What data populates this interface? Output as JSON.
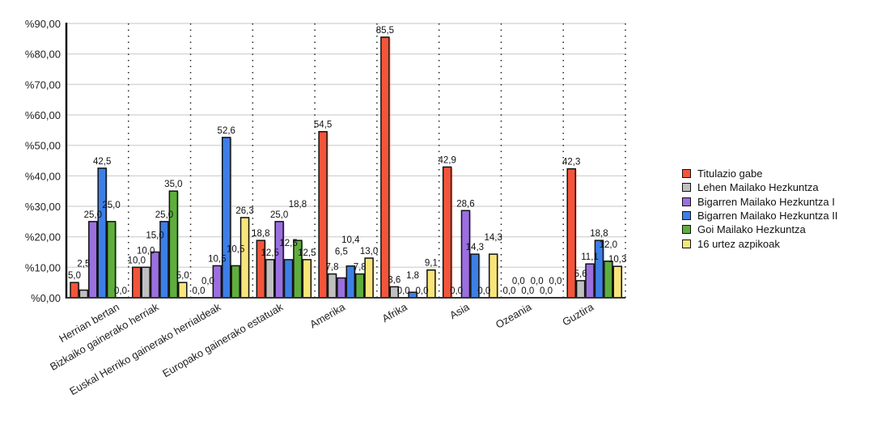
{
  "chart_data": {
    "type": "bar",
    "categories": [
      "Herrian bertan",
      "Bizkaiko gainerako herriak",
      "Euskal Herriko gainerako herrialdeak",
      "Europako gainerako estatuak",
      "Amerika",
      "Afrika",
      "Asia",
      "Ozeania",
      "Guztira"
    ],
    "series": [
      {
        "name": "Titulazio gabe",
        "color": "#f4553a",
        "values": [
          5.0,
          10.0,
          0.0,
          18.8,
          54.5,
          85.5,
          42.9,
          0.0,
          42.3
        ]
      },
      {
        "name": "Lehen Mailako Hezkuntza",
        "color": "#c0c0c0",
        "values": [
          2.5,
          10.0,
          0.0,
          12.5,
          7.8,
          3.6,
          0.0,
          0.0,
          5.6
        ]
      },
      {
        "name": "Bigarren Mailako Hezkuntza I",
        "color": "#9b6fe0",
        "values": [
          25.0,
          15.0,
          10.5,
          25.0,
          6.5,
          0.0,
          28.6,
          0.0,
          11.1
        ]
      },
      {
        "name": "Bigarren Mailako Hezkuntza II",
        "color": "#3d7fe6",
        "values": [
          42.5,
          25.0,
          52.6,
          12.5,
          10.4,
          1.8,
          14.3,
          0.0,
          18.8
        ]
      },
      {
        "name": "Goi Mailako Hezkuntza",
        "color": "#5fae3d",
        "values": [
          25.0,
          35.0,
          10.5,
          18.8,
          7.8,
          0.0,
          0.0,
          0.0,
          12.0
        ]
      },
      {
        "name": "16 urtez azpikoak",
        "color": "#f8e57a",
        "values": [
          0.0,
          5.0,
          26.3,
          12.5,
          13.0,
          9.1,
          14.3,
          0.0,
          10.3
        ]
      }
    ],
    "yticks": [
      "%0,00",
      "%10,00",
      "%20,00",
      "%30,00",
      "%40,00",
      "%50,00",
      "%60,00",
      "%70,00",
      "%80,00",
      "%90,00"
    ],
    "ylim": [
      0,
      90
    ],
    "grid": true,
    "legend": "right"
  }
}
